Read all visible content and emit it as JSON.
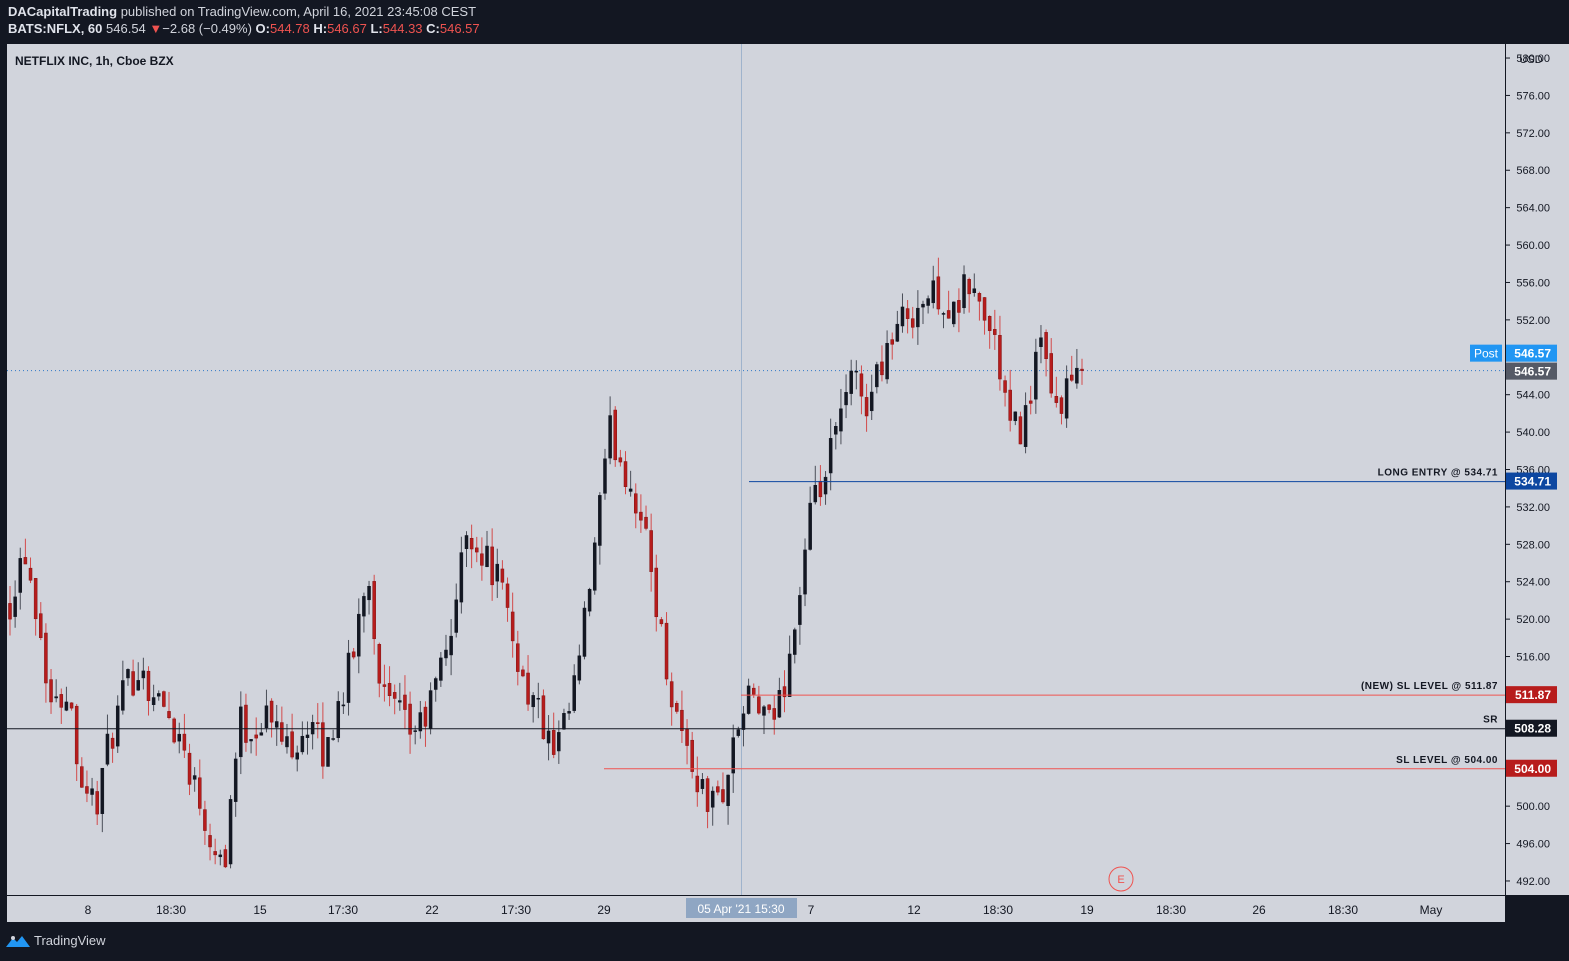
{
  "header": {
    "publisher": "DACapitalTrading",
    "published_text": "published on TradingView.com, April 16, 2021 23:45:08 CEST",
    "symbol": "BATS:NFLX, 60",
    "last": "546.54",
    "change_arrow": "▼",
    "change": "−2.68 (−0.49%)",
    "o_label": "O:",
    "o_value": "544.78",
    "h_label": "H:",
    "h_value": "546.67",
    "l_label": "L:",
    "l_value": "544.33",
    "c_label": "C:",
    "c_value": "546.57"
  },
  "legend_title": "NETFLIX INC, 1h, Cboe BZX",
  "currency": "USD",
  "footer": {
    "brand": "TradingView",
    "brand_icon": "tradingview-logo-icon"
  },
  "colors": {
    "background": "#d1d4dc",
    "bull": "#131722",
    "bear": "#b71c1c",
    "long_entry": "#0d47a1",
    "sl_line": "#ef5350",
    "sr_line": "#131722",
    "post_badge": "#2196f3"
  },
  "chart_data": {
    "type": "candlestick",
    "title": "NETFLIX INC, 1h, Cboe BZX",
    "ylim": [
      490.5,
      581.5
    ],
    "y_ticks": [
      "492.00",
      "496.00",
      "500.00",
      "504.00",
      "508.00",
      "512.00",
      "516.00",
      "520.00",
      "524.00",
      "528.00",
      "532.00",
      "536.00",
      "540.00",
      "544.00",
      "548.00",
      "552.00",
      "556.00",
      "560.00",
      "564.00",
      "568.00",
      "572.00",
      "576.00",
      "580.00"
    ],
    "x_tick_labels": [
      "8",
      "18:30",
      "15",
      "17:30",
      "22",
      "17:30",
      "29",
      "5 Apr '21",
      "7",
      "12",
      "18:30",
      "19",
      "18:30",
      "26",
      "18:30",
      "May"
    ],
    "crosshair_label": "05 Apr '21   15:30",
    "price_badges": [
      {
        "label": "Post",
        "value": "546.57"
      },
      {
        "label": "",
        "value": "546.57"
      }
    ],
    "levels": [
      {
        "name": "LONG ENTRY @ 534.71",
        "price": 534.71,
        "badge": "534.71"
      },
      {
        "name": "(NEW) SL LEVEL @ 511.87",
        "price": 511.87,
        "badge": "511.87"
      },
      {
        "name": "SR",
        "price": 508.28,
        "badge": "508.28"
      },
      {
        "name": "SL LEVEL @ 504.00",
        "price": 504.0,
        "badge": "504.00"
      }
    ],
    "earnings_marker": "E",
    "anchors": [
      522,
      528,
      520,
      510,
      513,
      503,
      500,
      507,
      512,
      515,
      512,
      510,
      507,
      502,
      497,
      494,
      509,
      508,
      510,
      507,
      507,
      509,
      505,
      511,
      516,
      526,
      512,
      510,
      508,
      509,
      514,
      520,
      530,
      527,
      525,
      519,
      513,
      510,
      505,
      509,
      517,
      529,
      540,
      536,
      532,
      524,
      514,
      508,
      503,
      500,
      502,
      509,
      512,
      508,
      512,
      520,
      531,
      535,
      541,
      546,
      543,
      548,
      551,
      553,
      554,
      555,
      552,
      556,
      553,
      549,
      540,
      541,
      550,
      542,
      545,
      546
    ]
  }
}
